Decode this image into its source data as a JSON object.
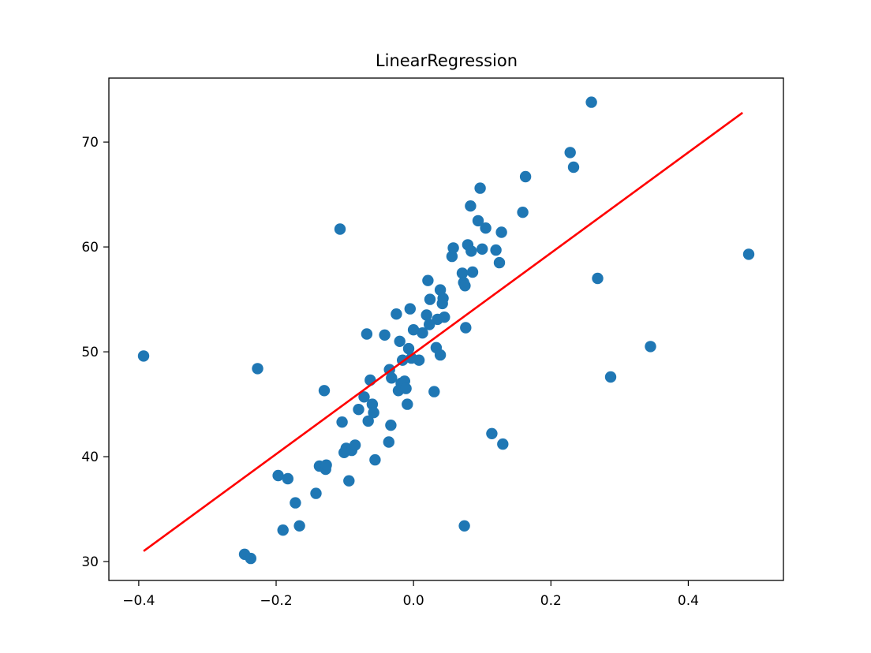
{
  "chart_data": {
    "type": "scatter",
    "title": "LinearRegression",
    "xlabel": "",
    "ylabel": "",
    "xlim": [
      -0.4435,
      0.5385
    ],
    "ylim": [
      28.2,
      76.1
    ],
    "xticks": [
      -0.4,
      -0.2,
      0.0,
      0.2,
      0.4
    ],
    "xtick_labels": [
      "−0.4",
      "−0.2",
      "0.0",
      "0.2",
      "0.4"
    ],
    "yticks": [
      30,
      40,
      50,
      60,
      70
    ],
    "ytick_labels": [
      "30",
      "40",
      "50",
      "60",
      "70"
    ],
    "grid": false,
    "colors": {
      "points": "#1f77b4",
      "line": "#ff0000"
    },
    "series": [
      {
        "type": "scatter",
        "points": [
          [
            -0.393,
            49.6
          ],
          [
            -0.246,
            30.7
          ],
          [
            -0.237,
            30.3
          ],
          [
            -0.227,
            48.4
          ],
          [
            -0.197,
            38.2
          ],
          [
            -0.19,
            33.0
          ],
          [
            -0.183,
            37.9
          ],
          [
            -0.172,
            35.6
          ],
          [
            -0.166,
            33.4
          ],
          [
            -0.142,
            36.5
          ],
          [
            -0.137,
            39.1
          ],
          [
            -0.13,
            46.3
          ],
          [
            -0.128,
            38.8
          ],
          [
            -0.127,
            39.2
          ],
          [
            -0.107,
            61.7
          ],
          [
            -0.104,
            43.3
          ],
          [
            -0.101,
            40.4
          ],
          [
            -0.098,
            40.8
          ],
          [
            -0.094,
            37.7
          ],
          [
            -0.09,
            40.6
          ],
          [
            -0.085,
            41.1
          ],
          [
            -0.08,
            44.5
          ],
          [
            -0.072,
            45.7
          ],
          [
            -0.068,
            51.7
          ],
          [
            -0.066,
            43.4
          ],
          [
            -0.063,
            47.3
          ],
          [
            -0.06,
            45.0
          ],
          [
            -0.058,
            44.2
          ],
          [
            -0.056,
            39.7
          ],
          [
            -0.042,
            51.6
          ],
          [
            -0.036,
            41.4
          ],
          [
            -0.035,
            48.3
          ],
          [
            -0.033,
            43.0
          ],
          [
            -0.032,
            47.5
          ],
          [
            -0.025,
            53.6
          ],
          [
            -0.022,
            46.3
          ],
          [
            -0.02,
            51.0
          ],
          [
            -0.018,
            47.0
          ],
          [
            -0.016,
            49.2
          ],
          [
            -0.014,
            46.6
          ],
          [
            -0.013,
            47.2
          ],
          [
            -0.011,
            46.5
          ],
          [
            -0.009,
            45.0
          ],
          [
            -0.007,
            50.3
          ],
          [
            -0.005,
            54.1
          ],
          [
            -0.003,
            49.4
          ],
          [
            0.0,
            52.1
          ],
          [
            0.008,
            49.2
          ],
          [
            0.013,
            51.8
          ],
          [
            0.019,
            53.5
          ],
          [
            0.021,
            56.8
          ],
          [
            0.023,
            52.6
          ],
          [
            0.024,
            55.0
          ],
          [
            0.03,
            46.2
          ],
          [
            0.033,
            50.4
          ],
          [
            0.035,
            53.1
          ],
          [
            0.039,
            49.7
          ],
          [
            0.039,
            55.9
          ],
          [
            0.042,
            54.6
          ],
          [
            0.043,
            55.1
          ],
          [
            0.045,
            53.3
          ],
          [
            0.056,
            59.1
          ],
          [
            0.058,
            59.9
          ],
          [
            0.071,
            57.5
          ],
          [
            0.073,
            56.6
          ],
          [
            0.074,
            33.4
          ],
          [
            0.075,
            56.3
          ],
          [
            0.076,
            52.3
          ],
          [
            0.079,
            60.2
          ],
          [
            0.083,
            63.9
          ],
          [
            0.084,
            59.6
          ],
          [
            0.086,
            57.6
          ],
          [
            0.094,
            62.5
          ],
          [
            0.097,
            65.6
          ],
          [
            0.1,
            59.8
          ],
          [
            0.105,
            61.8
          ],
          [
            0.114,
            42.2
          ],
          [
            0.12,
            59.7
          ],
          [
            0.125,
            58.5
          ],
          [
            0.128,
            61.4
          ],
          [
            0.13,
            41.2
          ],
          [
            0.159,
            63.3
          ],
          [
            0.163,
            66.7
          ],
          [
            0.228,
            69.0
          ],
          [
            0.233,
            67.6
          ],
          [
            0.259,
            73.8
          ],
          [
            0.268,
            57.0
          ],
          [
            0.287,
            47.6
          ],
          [
            0.345,
            50.5
          ],
          [
            0.488,
            59.3
          ]
        ]
      },
      {
        "type": "line",
        "points": [
          [
            -0.393,
            31.0
          ],
          [
            0.479,
            72.8
          ]
        ]
      }
    ]
  }
}
